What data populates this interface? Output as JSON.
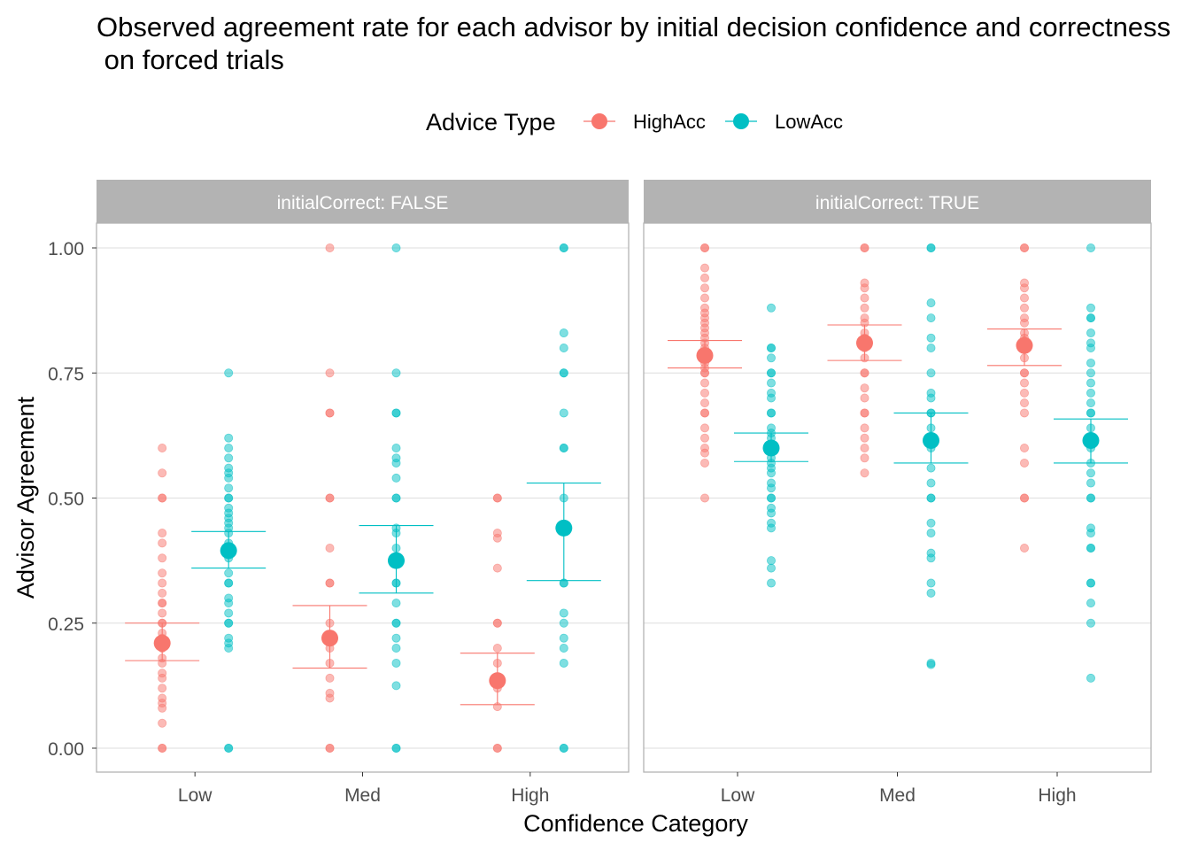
{
  "title_lines": [
    "Observed agreement rate for each advisor by initial decision confidence and correctness",
    " on forced trials"
  ],
  "legend": {
    "title": "Advice Type",
    "items": [
      {
        "label": "HighAcc",
        "color": "#F8766D"
      },
      {
        "label": "LowAcc",
        "color": "#00BFC4"
      }
    ]
  },
  "chart_data": {
    "type": "scatter",
    "xlabel": "Confidence Category",
    "ylabel": "Advisor Agreement",
    "categories": [
      "Low",
      "Med",
      "High"
    ],
    "ylim": [
      -0.05,
      1.1
    ],
    "yticks": [
      0,
      0.25,
      0.5,
      0.75,
      1.0
    ],
    "ytick_labels": [
      "0.00",
      "0.25",
      "0.50",
      "0.75",
      "1.00"
    ],
    "grid": true,
    "legend_position": "top",
    "facets": [
      {
        "label": "initialCorrect: FALSE",
        "series": [
          {
            "name": "HighAcc",
            "color": "#F8766D",
            "groups": [
              {
                "category": "Low",
                "mean": 0.21,
                "ci": [
                  0.175,
                  0.25
                ],
                "points": [
                  0,
                  0,
                  0.05,
                  0.08,
                  0.09,
                  0.1,
                  0.12,
                  0.14,
                  0.15,
                  0.17,
                  0.18,
                  0.2,
                  0.2,
                  0.22,
                  0.23,
                  0.25,
                  0.25,
                  0.27,
                  0.29,
                  0.29,
                  0.31,
                  0.33,
                  0.35,
                  0.38,
                  0.41,
                  0.43,
                  0.5,
                  0.5,
                  0.55,
                  0.6
                ]
              },
              {
                "category": "Med",
                "mean": 0.22,
                "ci": [
                  0.16,
                  0.285
                ],
                "points": [
                  0,
                  0,
                  0.1,
                  0.11,
                  0.14,
                  0.17,
                  0.2,
                  0.25,
                  0.33,
                  0.33,
                  0.4,
                  0.5,
                  0.5,
                  0.67,
                  0.67,
                  0.75,
                  1.0
                ]
              },
              {
                "category": "High",
                "mean": 0.135,
                "ci": [
                  0.087,
                  0.19
                ],
                "points": [
                  0,
                  0,
                  0.083,
                  0.12,
                  0.14,
                  0.17,
                  0.2,
                  0.25,
                  0.25,
                  0.36,
                  0.42,
                  0.43,
                  0.5,
                  0.5
                ]
              }
            ]
          },
          {
            "name": "LowAcc",
            "color": "#00BFC4",
            "groups": [
              {
                "category": "Low",
                "mean": 0.395,
                "ci": [
                  0.36,
                  0.433
                ],
                "points": [
                  0,
                  0,
                  0.2,
                  0.21,
                  0.22,
                  0.25,
                  0.25,
                  0.27,
                  0.29,
                  0.3,
                  0.33,
                  0.33,
                  0.35,
                  0.38,
                  0.4,
                  0.41,
                  0.43,
                  0.44,
                  0.45,
                  0.46,
                  0.47,
                  0.48,
                  0.5,
                  0.5,
                  0.52,
                  0.54,
                  0.55,
                  0.56,
                  0.58,
                  0.6,
                  0.62,
                  0.75
                ]
              },
              {
                "category": "Med",
                "mean": 0.375,
                "ci": [
                  0.31,
                  0.445
                ],
                "points": [
                  0,
                  0,
                  0.125,
                  0.17,
                  0.2,
                  0.22,
                  0.25,
                  0.25,
                  0.29,
                  0.33,
                  0.33,
                  0.38,
                  0.4,
                  0.43,
                  0.44,
                  0.5,
                  0.5,
                  0.54,
                  0.57,
                  0.58,
                  0.6,
                  0.67,
                  0.67,
                  0.75,
                  1.0
                ]
              },
              {
                "category": "High",
                "mean": 0.44,
                "ci": [
                  0.335,
                  0.53
                ],
                "points": [
                  0,
                  0,
                  0.17,
                  0.2,
                  0.22,
                  0.25,
                  0.27,
                  0.33,
                  0.33,
                  0.5,
                  0.6,
                  0.6,
                  0.67,
                  0.75,
                  0.75,
                  0.8,
                  0.83,
                  1.0,
                  1.0
                ]
              }
            ]
          }
        ]
      },
      {
        "label": "initialCorrect: TRUE",
        "series": [
          {
            "name": "HighAcc",
            "color": "#F8766D",
            "groups": [
              {
                "category": "Low",
                "mean": 0.785,
                "ci": [
                  0.76,
                  0.815
                ],
                "points": [
                  0.5,
                  0.57,
                  0.59,
                  0.6,
                  0.62,
                  0.64,
                  0.67,
                  0.67,
                  0.69,
                  0.71,
                  0.73,
                  0.75,
                  0.75,
                  0.76,
                  0.77,
                  0.78,
                  0.79,
                  0.8,
                  0.81,
                  0.82,
                  0.83,
                  0.84,
                  0.85,
                  0.86,
                  0.87,
                  0.88,
                  0.9,
                  0.92,
                  0.94,
                  0.96,
                  1.0,
                  1.0
                ]
              },
              {
                "category": "Med",
                "mean": 0.81,
                "ci": [
                  0.775,
                  0.846
                ],
                "points": [
                  0.55,
                  0.58,
                  0.6,
                  0.62,
                  0.64,
                  0.67,
                  0.67,
                  0.7,
                  0.72,
                  0.75,
                  0.75,
                  0.78,
                  0.8,
                  0.82,
                  0.83,
                  0.85,
                  0.86,
                  0.88,
                  0.9,
                  0.92,
                  0.93,
                  1.0,
                  1.0
                ]
              },
              {
                "category": "High",
                "mean": 0.805,
                "ci": [
                  0.765,
                  0.838
                ],
                "points": [
                  0.4,
                  0.5,
                  0.5,
                  0.57,
                  0.6,
                  0.67,
                  0.69,
                  0.71,
                  0.73,
                  0.75,
                  0.75,
                  0.78,
                  0.8,
                  0.82,
                  0.83,
                  0.85,
                  0.86,
                  0.88,
                  0.9,
                  0.92,
                  0.93,
                  1.0,
                  1.0
                ]
              }
            ]
          },
          {
            "name": "LowAcc",
            "color": "#00BFC4",
            "groups": [
              {
                "category": "Low",
                "mean": 0.6,
                "ci": [
                  0.573,
                  0.63
                ],
                "points": [
                  0.33,
                  0.36,
                  0.375,
                  0.44,
                  0.45,
                  0.47,
                  0.48,
                  0.5,
                  0.5,
                  0.52,
                  0.53,
                  0.55,
                  0.56,
                  0.57,
                  0.58,
                  0.6,
                  0.6,
                  0.62,
                  0.63,
                  0.64,
                  0.67,
                  0.67,
                  0.7,
                  0.71,
                  0.73,
                  0.75,
                  0.75,
                  0.78,
                  0.8,
                  0.8,
                  0.88
                ]
              },
              {
                "category": "Med",
                "mean": 0.615,
                "ci": [
                  0.57,
                  0.67
                ],
                "points": [
                  0.167,
                  0.17,
                  0.31,
                  0.33,
                  0.38,
                  0.39,
                  0.43,
                  0.45,
                  0.5,
                  0.5,
                  0.53,
                  0.56,
                  0.6,
                  0.62,
                  0.64,
                  0.67,
                  0.67,
                  0.7,
                  0.71,
                  0.75,
                  0.8,
                  0.82,
                  0.86,
                  0.89,
                  1.0,
                  1.0
                ]
              },
              {
                "category": "High",
                "mean": 0.615,
                "ci": [
                  0.57,
                  0.658
                ],
                "points": [
                  0.14,
                  0.25,
                  0.29,
                  0.33,
                  0.33,
                  0.4,
                  0.4,
                  0.43,
                  0.44,
                  0.5,
                  0.5,
                  0.53,
                  0.55,
                  0.57,
                  0.6,
                  0.62,
                  0.64,
                  0.67,
                  0.67,
                  0.69,
                  0.71,
                  0.73,
                  0.75,
                  0.77,
                  0.8,
                  0.81,
                  0.83,
                  0.86,
                  0.86,
                  0.88,
                  1.0
                ]
              }
            ]
          }
        ]
      }
    ]
  }
}
